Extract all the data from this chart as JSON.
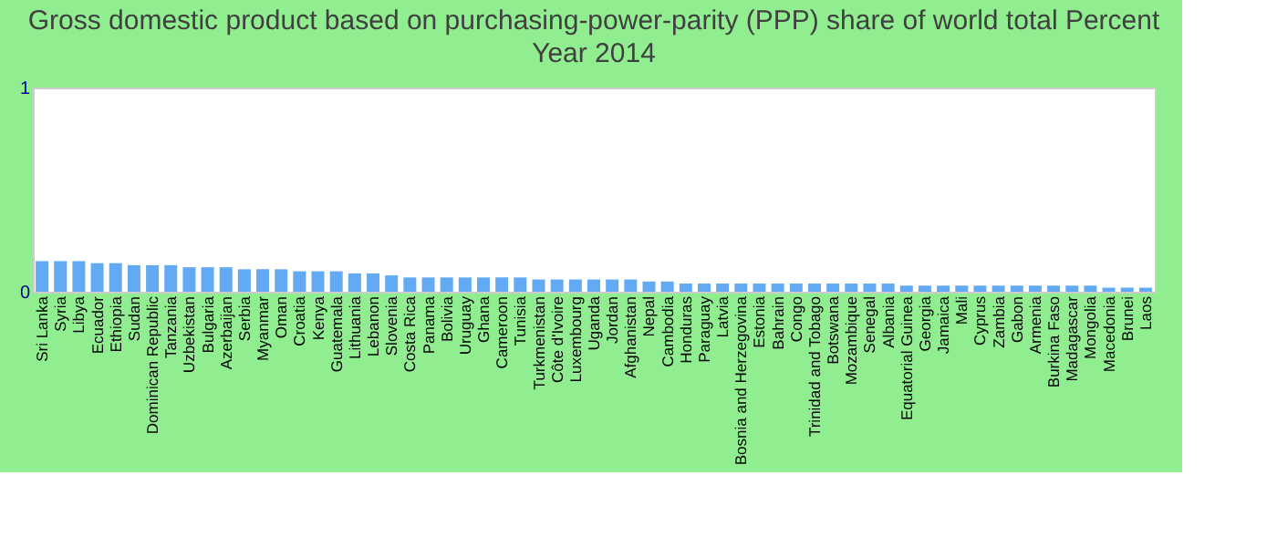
{
  "chart_data": {
    "type": "bar",
    "title": "Gross domestic product based on purchasing-power-parity (PPP) share of world total  Percent",
    "subtitle": "Year 2014",
    "categories": [
      "Sri Lanka",
      "Syria",
      "Libya",
      "Ecuador",
      "Ethiopia",
      "Sudan",
      "Dominican Republic",
      "Tanzania",
      "Uzbekistan",
      "Bulgaria",
      "Azerbaijan",
      "Serbia",
      "Myanmar",
      "Oman",
      "Croatia",
      "Kenya",
      "Guatemala",
      "Lithuania",
      "Lebanon",
      "Slovenia",
      "Costa Rica",
      "Panama",
      "Bolivia",
      "Uruguay",
      "Ghana",
      "Cameroon",
      "Tunisia",
      "Turkmenistan",
      "Côte d'Ivoire",
      "Luxembourg",
      "Uganda",
      "Jordan",
      "Afghanistan",
      "Nepal",
      "Cambodia",
      "Honduras",
      "Paraguay",
      "Latvia",
      "Bosnia and Herzegovina",
      "Estonia",
      "Bahrain",
      "Congo",
      "Trinidad and Tobago",
      "Botswana",
      "Mozambique",
      "Senegal",
      "Albania",
      "Equatorial Guinea",
      "Georgia",
      "Jamaica",
      "Mali",
      "Cyprus",
      "Zambia",
      "Gabon",
      "Armenia",
      "Burkina Faso",
      "Madagascar",
      "Mongolia",
      "Macedonia",
      "Brunei",
      "Laos"
    ],
    "values": [
      0.15,
      0.15,
      0.15,
      0.14,
      0.14,
      0.13,
      0.13,
      0.13,
      0.12,
      0.12,
      0.12,
      0.11,
      0.11,
      0.11,
      0.1,
      0.1,
      0.1,
      0.09,
      0.09,
      0.08,
      0.07,
      0.07,
      0.07,
      0.07,
      0.07,
      0.07,
      0.07,
      0.06,
      0.06,
      0.06,
      0.06,
      0.06,
      0.06,
      0.05,
      0.05,
      0.04,
      0.04,
      0.04,
      0.04,
      0.04,
      0.04,
      0.04,
      0.04,
      0.04,
      0.04,
      0.04,
      0.04,
      0.03,
      0.03,
      0.03,
      0.03,
      0.03,
      0.03,
      0.03,
      0.03,
      0.03,
      0.03,
      0.03,
      0.02,
      0.02,
      0.02
    ],
    "color": "#62aaf4",
    "ylim": [
      0,
      1
    ],
    "yticks": [
      0,
      1
    ],
    "grid": false
  }
}
